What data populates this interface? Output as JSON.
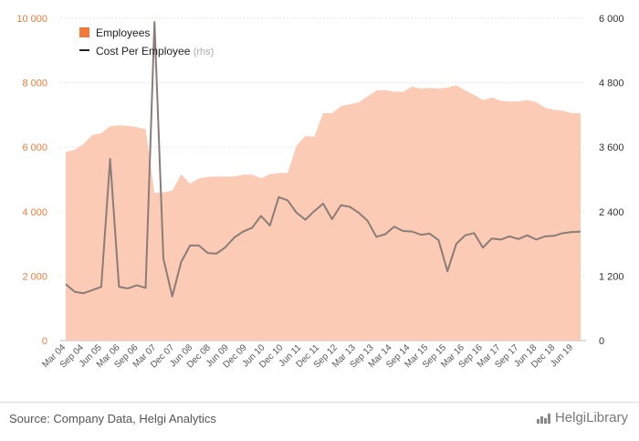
{
  "chart_data": {
    "type": "area+line",
    "legend": {
      "placement": "top-left"
    },
    "series": [
      {
        "name": "Employees",
        "type": "area",
        "axis": "left",
        "color": "#f47a3a",
        "fill": "#fbcbb5",
        "values": [
          5850,
          5920,
          6100,
          6380,
          6430,
          6650,
          6680,
          6660,
          6620,
          6560,
          4580,
          4600,
          4650,
          5160,
          4870,
          5030,
          5080,
          5090,
          5090,
          5090,
          5150,
          5150,
          5040,
          5160,
          5200,
          5200,
          6050,
          6350,
          6320,
          7060,
          7050,
          7270,
          7330,
          7390,
          7570,
          7760,
          7770,
          7720,
          7720,
          7880,
          7820,
          7840,
          7820,
          7850,
          7920,
          7760,
          7620,
          7460,
          7540,
          7440,
          7420,
          7420,
          7460,
          7400,
          7220,
          7160,
          7130,
          7050,
          7050
        ]
      },
      {
        "name": "Cost Per Employee",
        "unit": "(rhs)",
        "type": "line",
        "axis": "right",
        "color": "#8a7d78",
        "values": [
          1050,
          910,
          880,
          940,
          1000,
          3380,
          1000,
          970,
          1030,
          980,
          5930,
          1530,
          820,
          1460,
          1770,
          1770,
          1630,
          1620,
          1740,
          1920,
          2030,
          2100,
          2320,
          2140,
          2670,
          2610,
          2380,
          2250,
          2410,
          2550,
          2260,
          2520,
          2490,
          2380,
          2230,
          1930,
          1980,
          2120,
          2040,
          2030,
          1970,
          1990,
          1870,
          1290,
          1800,
          1960,
          2000,
          1730,
          1900,
          1880,
          1940,
          1890,
          1960,
          1880,
          1940,
          1950,
          2000,
          2020,
          2030
        ]
      }
    ],
    "y_left": {
      "min": 0,
      "max": 10000,
      "ticks": [
        0,
        2000,
        4000,
        6000,
        8000,
        10000
      ],
      "tick_labels": [
        "0",
        "2 000",
        "4 000",
        "6 000",
        "8 000",
        "10 000"
      ]
    },
    "y_right": {
      "min": 0,
      "max": 6000,
      "ticks": [
        0,
        1200,
        2400,
        3600,
        4800,
        6000
      ],
      "tick_labels": [
        "0",
        "1 200",
        "2 400",
        "3 600",
        "4 800",
        "6 000"
      ]
    },
    "x_tick_labels": [
      "Mar 04",
      "Sep 04",
      "Jun 05",
      "Mar 06",
      "Sep 06",
      "Mar 07",
      "Dec 07",
      "Jun 08",
      "Dec 08",
      "Jun 09",
      "Dec 09",
      "Jun 10",
      "Dec 10",
      "Jun 11",
      "Dec 11",
      "Sep 12",
      "Mar 13",
      "Sep 13",
      "Mar 14",
      "Sep 14",
      "Mar 15",
      "Sep 15",
      "Mar 16",
      "Sep 16",
      "Mar 17",
      "Sep 17",
      "Jun 18",
      "Dec 18",
      "Jun 19"
    ],
    "grid": {
      "horizontal": true,
      "vertical": false
    }
  },
  "footer": {
    "source": "Source: Company Data, Helgi Analytics",
    "brand": "HelgiLibrary"
  }
}
